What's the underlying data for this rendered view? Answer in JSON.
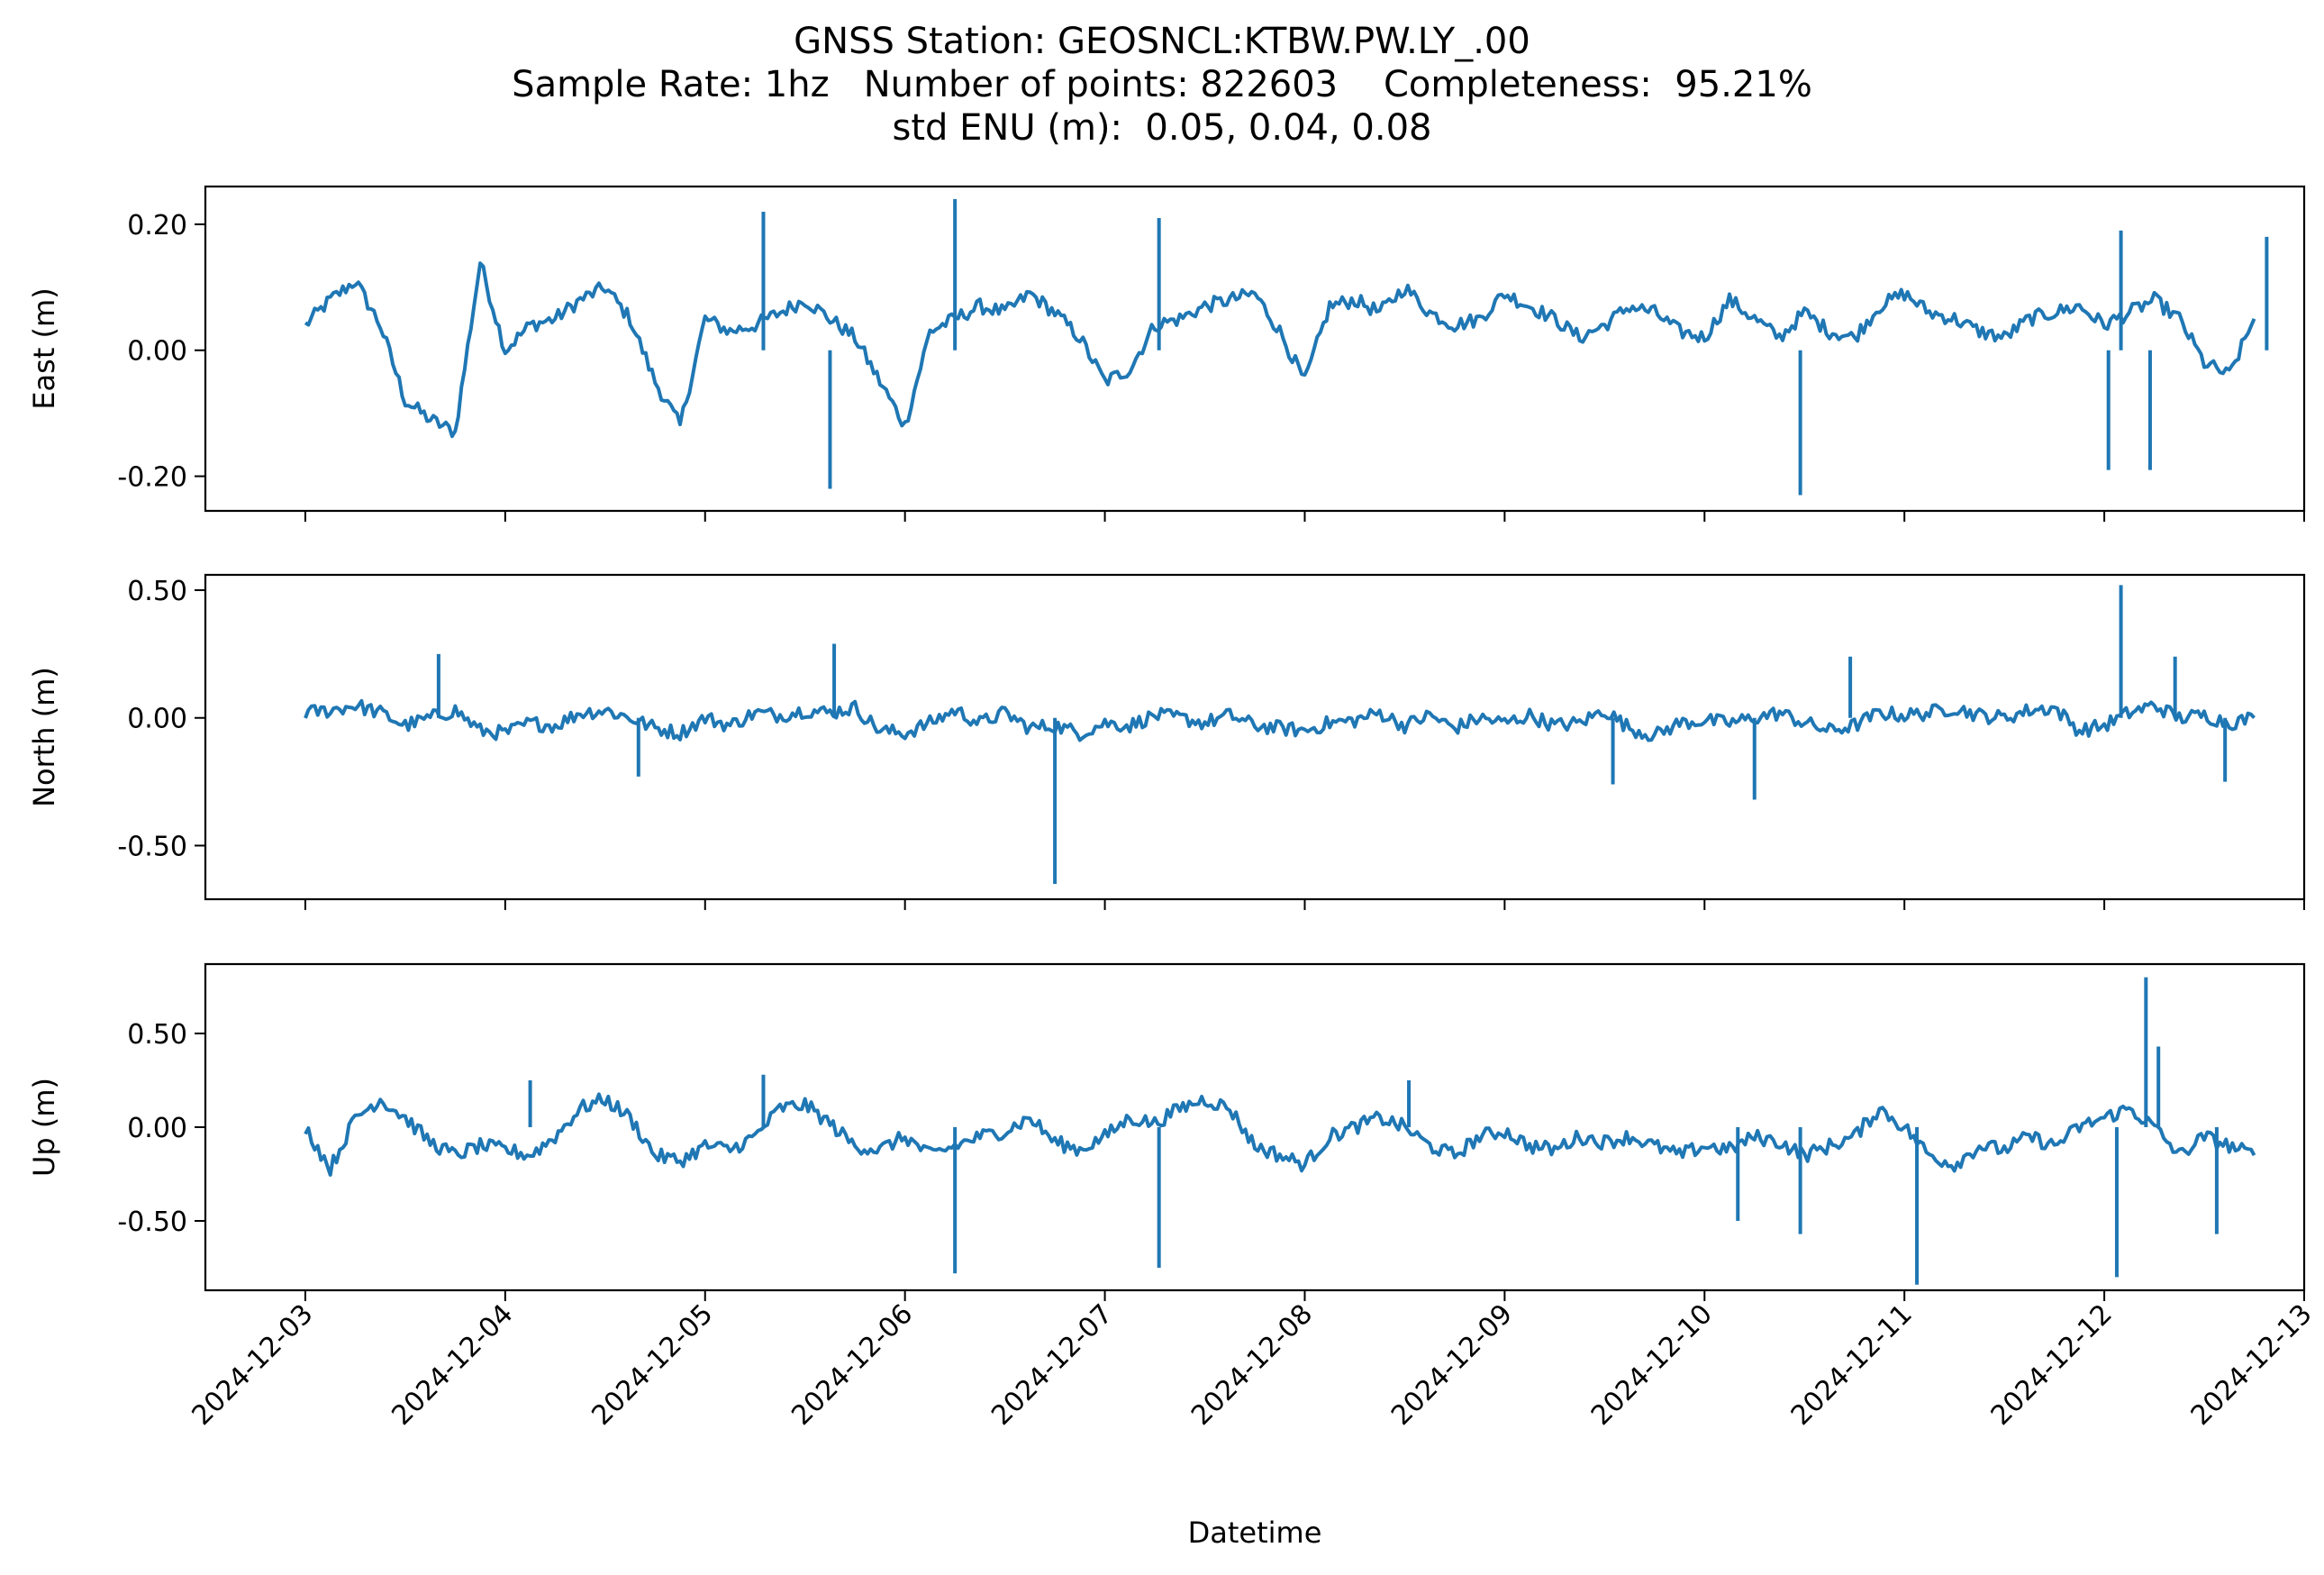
{
  "title_lines": [
    "GNSS Station: GEOSNCL:KTBW.PW.LY_.00",
    "Sample Rate: 1hz   Number of points: 822603    Completeness:  95.21%",
    "std ENU (m):  0.05, 0.04, 0.08"
  ],
  "line_color": "#1f77b4",
  "chart_data": [
    {
      "type": "line",
      "ylabel": "East (m)",
      "ylim": [
        -0.255,
        0.26
      ],
      "yticks": [
        0.2,
        0.0,
        -0.2
      ],
      "ytick_labels": [
        "0.20",
        "0.00",
        "-0.20"
      ],
      "x": [
        "2024-12-03T00:00",
        "2024-12-03T03:00",
        "2024-12-03T06:00",
        "2024-12-03T09:00",
        "2024-12-03T12:00",
        "2024-12-03T15:00",
        "2024-12-03T18:00",
        "2024-12-03T21:00",
        "2024-12-04T00:00",
        "2024-12-04T03:00",
        "2024-12-04T06:00",
        "2024-12-04T09:00",
        "2024-12-04T12:00",
        "2024-12-04T15:00",
        "2024-12-04T18:00",
        "2024-12-04T21:00",
        "2024-12-05T00:00",
        "2024-12-05T03:00",
        "2024-12-05T06:00",
        "2024-12-05T09:00",
        "2024-12-05T12:00",
        "2024-12-05T15:00",
        "2024-12-05T18:00",
        "2024-12-05T21:00",
        "2024-12-06T00:00",
        "2024-12-06T03:00",
        "2024-12-06T06:00",
        "2024-12-06T09:00",
        "2024-12-06T12:00",
        "2024-12-06T15:00",
        "2024-12-06T18:00",
        "2024-12-06T21:00",
        "2024-12-07T00:00",
        "2024-12-07T03:00",
        "2024-12-07T06:00",
        "2024-12-07T09:00",
        "2024-12-07T12:00",
        "2024-12-07T15:00",
        "2024-12-07T18:00",
        "2024-12-07T21:00",
        "2024-12-08T00:00",
        "2024-12-08T03:00",
        "2024-12-08T06:00",
        "2024-12-08T09:00",
        "2024-12-08T12:00",
        "2024-12-08T15:00",
        "2024-12-08T18:00",
        "2024-12-08T21:00",
        "2024-12-09T00:00",
        "2024-12-09T03:00",
        "2024-12-09T06:00",
        "2024-12-09T09:00",
        "2024-12-09T12:00",
        "2024-12-09T15:00",
        "2024-12-09T18:00",
        "2024-12-09T21:00",
        "2024-12-10T00:00",
        "2024-12-10T03:00",
        "2024-12-10T06:00",
        "2024-12-10T09:00",
        "2024-12-10T12:00",
        "2024-12-10T15:00",
        "2024-12-10T18:00",
        "2024-12-10T21:00",
        "2024-12-11T00:00",
        "2024-12-11T03:00",
        "2024-12-11T06:00",
        "2024-12-11T09:00",
        "2024-12-11T12:00",
        "2024-12-11T15:00",
        "2024-12-11T18:00",
        "2024-12-11T21:00",
        "2024-12-12T00:00",
        "2024-12-12T03:00",
        "2024-12-12T06:00",
        "2024-12-12T09:00",
        "2024-12-12T12:00",
        "2024-12-12T15:00",
        "2024-12-12T18:00"
      ],
      "y": [
        0.04,
        0.08,
        0.11,
        0.04,
        -0.08,
        -0.11,
        -0.13,
        0.14,
        0.0,
        0.04,
        0.05,
        0.08,
        0.1,
        0.05,
        -0.05,
        -0.12,
        0.05,
        0.03,
        0.04,
        0.06,
        0.08,
        0.05,
        0.02,
        -0.05,
        -0.12,
        0.03,
        0.05,
        0.07,
        0.06,
        0.09,
        0.06,
        0.02,
        -0.05,
        -0.03,
        0.04,
        0.05,
        0.07,
        0.08,
        0.09,
        0.03,
        -0.05,
        0.07,
        0.08,
        0.06,
        0.1,
        0.06,
        0.04,
        0.05,
        0.09,
        0.07,
        0.05,
        0.02,
        0.04,
        0.07,
        0.06,
        0.03,
        0.02,
        0.08,
        0.05,
        0.02,
        0.06,
        0.03,
        0.02,
        0.07,
        0.09,
        0.06,
        0.05,
        0.03,
        0.02,
        0.05,
        0.06,
        0.07,
        0.04,
        0.06,
        0.08,
        0.05,
        -0.02,
        -0.04,
        0.05
      ],
      "spikes": [
        [
          "2024-12-05T07:00",
          0.22
        ],
        [
          "2024-12-05T15:00",
          -0.22
        ],
        [
          "2024-12-06T06:00",
          0.24
        ],
        [
          "2024-12-07T06:30",
          0.21
        ],
        [
          "2024-12-10T11:30",
          -0.23
        ],
        [
          "2024-12-12T00:30",
          -0.19
        ],
        [
          "2024-12-12T02:00",
          0.19
        ],
        [
          "2024-12-12T05:30",
          -0.19
        ],
        [
          "2024-12-12T19:30",
          0.18
        ]
      ]
    },
    {
      "type": "line",
      "ylabel": "North (m)",
      "ylim": [
        -0.71,
        0.56
      ],
      "yticks": [
        0.5,
        0.0,
        -0.5
      ],
      "ytick_labels": [
        "0.50",
        "0.00",
        "-0.50"
      ],
      "x": [
        "2024-12-03T00:00",
        "2024-12-03T03:00",
        "2024-12-03T06:00",
        "2024-12-03T09:00",
        "2024-12-03T12:00",
        "2024-12-03T15:00",
        "2024-12-03T18:00",
        "2024-12-03T21:00",
        "2024-12-04T00:00",
        "2024-12-04T03:00",
        "2024-12-04T06:00",
        "2024-12-04T09:00",
        "2024-12-04T12:00",
        "2024-12-04T15:00",
        "2024-12-04T18:00",
        "2024-12-04T21:00",
        "2024-12-05T00:00",
        "2024-12-05T03:00",
        "2024-12-05T06:00",
        "2024-12-05T09:00",
        "2024-12-05T12:00",
        "2024-12-05T15:00",
        "2024-12-05T18:00",
        "2024-12-05T21:00",
        "2024-12-06T00:00",
        "2024-12-06T03:00",
        "2024-12-06T06:00",
        "2024-12-06T09:00",
        "2024-12-06T12:00",
        "2024-12-06T15:00",
        "2024-12-06T18:00",
        "2024-12-06T21:00",
        "2024-12-07T00:00",
        "2024-12-07T03:00",
        "2024-12-07T06:00",
        "2024-12-07T09:00",
        "2024-12-07T12:00",
        "2024-12-07T15:00",
        "2024-12-07T18:00",
        "2024-12-07T21:00",
        "2024-12-08T00:00",
        "2024-12-08T03:00",
        "2024-12-08T06:00",
        "2024-12-08T09:00",
        "2024-12-08T12:00",
        "2024-12-08T15:00",
        "2024-12-08T18:00",
        "2024-12-08T21:00",
        "2024-12-09T00:00",
        "2024-12-09T03:00",
        "2024-12-09T06:00",
        "2024-12-09T09:00",
        "2024-12-09T12:00",
        "2024-12-09T15:00",
        "2024-12-09T18:00",
        "2024-12-09T21:00",
        "2024-12-10T00:00",
        "2024-12-10T03:00",
        "2024-12-10T06:00",
        "2024-12-10T09:00",
        "2024-12-10T12:00",
        "2024-12-10T15:00",
        "2024-12-10T18:00",
        "2024-12-10T21:00",
        "2024-12-11T00:00",
        "2024-12-11T03:00",
        "2024-12-11T06:00",
        "2024-12-11T09:00",
        "2024-12-11T12:00",
        "2024-12-11T15:00",
        "2024-12-11T18:00",
        "2024-12-11T21:00",
        "2024-12-12T00:00",
        "2024-12-12T03:00",
        "2024-12-12T06:00",
        "2024-12-12T09:00",
        "2024-12-12T12:00",
        "2024-12-12T15:00",
        "2024-12-12T18:00"
      ],
      "y": [
        0.02,
        0.03,
        0.05,
        0.02,
        -0.03,
        0.0,
        0.03,
        -0.05,
        -0.06,
        -0.02,
        -0.03,
        0.02,
        0.03,
        0.0,
        -0.04,
        -0.06,
        0.0,
        -0.03,
        0.02,
        0.01,
        0.03,
        0.02,
        0.04,
        -0.05,
        -0.06,
        -0.02,
        0.03,
        -0.02,
        0.02,
        -0.04,
        -0.03,
        -0.06,
        -0.02,
        -0.03,
        0.01,
        0.0,
        -0.02,
        0.01,
        -0.03,
        -0.04,
        -0.05,
        -0.02,
        -0.01,
        0.02,
        -0.03,
        0.01,
        -0.04,
        0.0,
        -0.02,
        0.01,
        -0.03,
        -0.02,
        0.03,
        -0.04,
        -0.07,
        -0.02,
        -0.01,
        -0.02,
        0.0,
        0.02,
        -0.02,
        -0.05,
        -0.03,
        0.02,
        0.01,
        0.02,
        0.04,
        0.01,
        0.0,
        0.03,
        0.04,
        -0.05,
        -0.03,
        0.02,
        0.05,
        0.0,
        0.01,
        -0.02,
        0.0
      ],
      "spikes": [
        [
          "2024-12-03T16:00",
          0.25
        ],
        [
          "2024-12-04T16:00",
          -0.23
        ],
        [
          "2024-12-05T15:30",
          0.29
        ],
        [
          "2024-12-06T18:00",
          -0.65
        ],
        [
          "2024-12-09T13:00",
          -0.26
        ],
        [
          "2024-12-10T06:00",
          -0.32
        ],
        [
          "2024-12-10T17:30",
          0.24
        ],
        [
          "2024-12-12T02:00",
          0.52
        ],
        [
          "2024-12-12T08:30",
          0.24
        ],
        [
          "2024-12-12T14:30",
          -0.25
        ]
      ]
    },
    {
      "type": "line",
      "ylabel": "Up (m)",
      "ylim": [
        -0.87,
        0.87
      ],
      "yticks": [
        0.5,
        0.0,
        -0.5
      ],
      "ytick_labels": [
        "0.50",
        "0.00",
        "-0.50"
      ],
      "x": [
        "2024-12-03T00:00",
        "2024-12-03T03:00",
        "2024-12-03T06:00",
        "2024-12-03T09:00",
        "2024-12-03T12:00",
        "2024-12-03T15:00",
        "2024-12-03T18:00",
        "2024-12-03T21:00",
        "2024-12-04T00:00",
        "2024-12-04T03:00",
        "2024-12-04T06:00",
        "2024-12-04T09:00",
        "2024-12-04T12:00",
        "2024-12-04T15:00",
        "2024-12-04T18:00",
        "2024-12-04T21:00",
        "2024-12-05T00:00",
        "2024-12-05T03:00",
        "2024-12-05T06:00",
        "2024-12-05T09:00",
        "2024-12-05T12:00",
        "2024-12-05T15:00",
        "2024-12-05T18:00",
        "2024-12-05T21:00",
        "2024-12-06T00:00",
        "2024-12-06T03:00",
        "2024-12-06T06:00",
        "2024-12-06T09:00",
        "2024-12-06T12:00",
        "2024-12-06T15:00",
        "2024-12-06T18:00",
        "2024-12-06T21:00",
        "2024-12-07T00:00",
        "2024-12-07T03:00",
        "2024-12-07T06:00",
        "2024-12-07T09:00",
        "2024-12-07T12:00",
        "2024-12-07T15:00",
        "2024-12-07T18:00",
        "2024-12-07T21:00",
        "2024-12-08T00:00",
        "2024-12-08T03:00",
        "2024-12-08T06:00",
        "2024-12-08T09:00",
        "2024-12-08T12:00",
        "2024-12-08T15:00",
        "2024-12-08T18:00",
        "2024-12-08T21:00",
        "2024-12-09T00:00",
        "2024-12-09T03:00",
        "2024-12-09T06:00",
        "2024-12-09T09:00",
        "2024-12-09T12:00",
        "2024-12-09T15:00",
        "2024-12-09T18:00",
        "2024-12-09T21:00",
        "2024-12-10T00:00",
        "2024-12-10T03:00",
        "2024-12-10T06:00",
        "2024-12-10T09:00",
        "2024-12-10T12:00",
        "2024-12-10T15:00",
        "2024-12-10T18:00",
        "2024-12-10T21:00",
        "2024-12-11T00:00",
        "2024-12-11T03:00",
        "2024-12-11T06:00",
        "2024-12-11T09:00",
        "2024-12-11T12:00",
        "2024-12-11T15:00",
        "2024-12-11T18:00",
        "2024-12-11T21:00",
        "2024-12-12T00:00",
        "2024-12-12T03:00",
        "2024-12-12T06:00",
        "2024-12-12T09:00",
        "2024-12-12T12:00",
        "2024-12-12T15:00",
        "2024-12-12T18:00"
      ],
      "y": [
        0.0,
        -0.22,
        0.05,
        0.15,
        0.05,
        -0.08,
        -0.15,
        -0.1,
        -0.12,
        -0.15,
        -0.05,
        0.1,
        0.15,
        0.05,
        -0.15,
        -0.18,
        -0.1,
        -0.12,
        -0.05,
        0.1,
        0.12,
        0.02,
        -0.1,
        -0.12,
        -0.05,
        -0.15,
        -0.1,
        -0.05,
        -0.02,
        0.05,
        -0.08,
        -0.12,
        -0.05,
        0.05,
        0.02,
        0.1,
        0.15,
        0.1,
        -0.1,
        -0.15,
        -0.2,
        -0.05,
        0.0,
        0.05,
        0.0,
        -0.1,
        -0.15,
        -0.05,
        -0.02,
        -0.1,
        -0.12,
        -0.05,
        -0.08,
        -0.05,
        -0.1,
        -0.15,
        -0.1,
        -0.12,
        -0.05,
        -0.08,
        -0.15,
        -0.1,
        -0.05,
        0.1,
        0.0,
        -0.15,
        -0.2,
        -0.1,
        -0.12,
        -0.05,
        -0.1,
        0.0,
        0.05,
        0.1,
        0.0,
        -0.15,
        -0.05,
        -0.1,
        -0.15
      ],
      "spikes": [
        [
          "2024-12-04T03:00",
          0.25
        ],
        [
          "2024-12-05T07:00",
          0.28
        ],
        [
          "2024-12-06T06:00",
          -0.78
        ],
        [
          "2024-12-07T06:30",
          -0.75
        ],
        [
          "2024-12-08T12:30",
          0.25
        ],
        [
          "2024-12-10T04:00",
          -0.5
        ],
        [
          "2024-12-10T11:30",
          -0.57
        ],
        [
          "2024-12-11T01:30",
          -0.84
        ],
        [
          "2024-12-12T01:30",
          -0.8
        ],
        [
          "2024-12-12T05:00",
          0.8
        ],
        [
          "2024-12-12T06:30",
          0.43
        ],
        [
          "2024-12-12T13:30",
          -0.57
        ]
      ]
    }
  ],
  "x_axis": {
    "xlabel": "Datetime",
    "xlim": [
      "2024-12-02T12:00",
      "2024-12-13T00:00"
    ],
    "ticks": [
      "2024-12-03",
      "2024-12-04",
      "2024-12-05",
      "2024-12-06",
      "2024-12-07",
      "2024-12-08",
      "2024-12-09",
      "2024-12-10",
      "2024-12-11",
      "2024-12-12",
      "2024-12-13"
    ]
  },
  "grid": false
}
